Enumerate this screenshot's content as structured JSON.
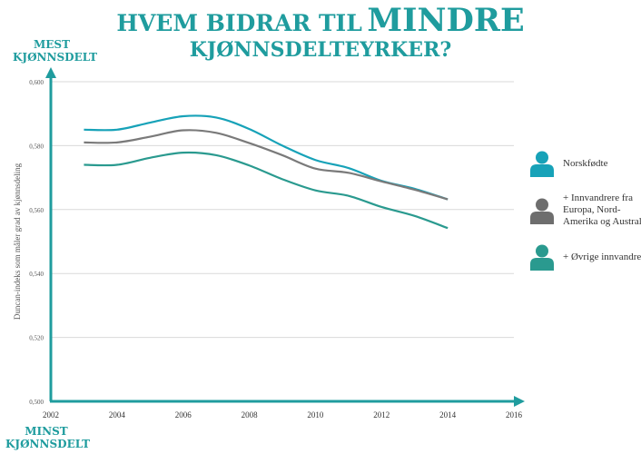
{
  "title": {
    "part1": "HVEM BIDRAR TIL",
    "part2": "MINDRE",
    "line2": "KJØNNSDELTEYRKER?"
  },
  "axis_words": {
    "top_line1": "MEST",
    "top_line2": "KJØNNSDELT",
    "bottom_line1": "MINST",
    "bottom_line2": "KJØNNSDELT"
  },
  "colors": {
    "accent": "#1f9c9e",
    "norskfodte": "#17a2b8",
    "europa": "#7a7a7a",
    "ovrige": "#2a9a8f",
    "grid": "#d9d9d9"
  },
  "chart_data": {
    "type": "line",
    "title": "HVEM BIDRAR TIL MINDRE KJØNNSDELTEYRKER?",
    "xlabel": "",
    "ylabel": "Duncan-indeks som måler grad av kjønnsdeling",
    "xlim": [
      2002,
      2016
    ],
    "ylim": [
      0.5,
      0.6
    ],
    "xticks": [
      2002,
      2004,
      2006,
      2008,
      2010,
      2012,
      2014,
      2016
    ],
    "ytick_labels": [
      "0,500",
      "0,520",
      "0,540",
      "0,560",
      "0,580",
      "0,600"
    ],
    "grid": true,
    "legend_position": "right",
    "series": [
      {
        "name": "Norskfødte",
        "x": [
          2003,
          2004,
          2005,
          2006,
          2007,
          2008,
          2009,
          2010,
          2011,
          2012,
          2013,
          2014
        ],
        "values": [
          0.585,
          0.585,
          0.5872,
          0.5892,
          0.5888,
          0.5852,
          0.58,
          0.5755,
          0.573,
          0.569,
          0.5665,
          0.5632
        ]
      },
      {
        "name": "+ Innvandrere fra Europa, Nord-Amerika og Australia",
        "x": [
          2003,
          2004,
          2005,
          2006,
          2007,
          2008,
          2009,
          2010,
          2011,
          2012,
          2013,
          2014
        ],
        "values": [
          0.581,
          0.581,
          0.5828,
          0.5848,
          0.584,
          0.5808,
          0.577,
          0.5728,
          0.5715,
          0.5688,
          0.5662,
          0.5632
        ]
      },
      {
        "name": "+ Øvrige innvandrere",
        "x": [
          2003,
          2004,
          2005,
          2006,
          2007,
          2008,
          2009,
          2010,
          2011,
          2012,
          2013,
          2014
        ],
        "values": [
          0.574,
          0.574,
          0.5762,
          0.5778,
          0.577,
          0.5738,
          0.5695,
          0.566,
          0.5643,
          0.5608,
          0.558,
          0.5542
        ]
      }
    ]
  }
}
